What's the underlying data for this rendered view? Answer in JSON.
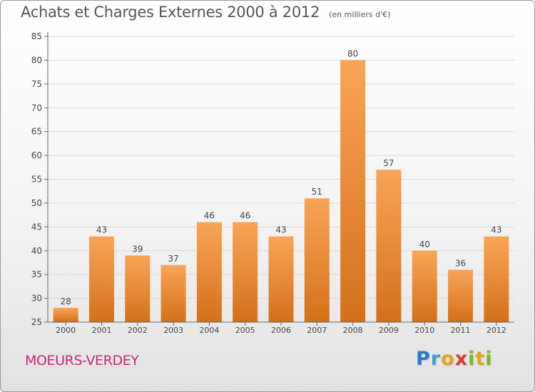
{
  "title": "Achats et Charges Externes 2000 à 2012",
  "unit": "(en milliers d'€)",
  "location": "MOEURS-VERDEY",
  "brand": {
    "letters": [
      "P",
      "r",
      "o",
      "x",
      "i",
      "t",
      "i"
    ],
    "colors": [
      "#2b79c8",
      "#3ba3d8",
      "#e8a21a",
      "#d93a2b",
      "#7ab828",
      "#e8a21a",
      "#7ab828"
    ]
  },
  "colors": {
    "bar_top": "#f9a557",
    "bar_bottom": "#d4701a",
    "axis": "#666666",
    "grid": "#d8d8d8"
  },
  "chart_data": {
    "type": "bar",
    "categories": [
      "2000",
      "2001",
      "2002",
      "2003",
      "2004",
      "2005",
      "2006",
      "2007",
      "2008",
      "2009",
      "2010",
      "2011",
      "2012"
    ],
    "values": [
      28,
      43,
      39,
      37,
      46,
      46,
      43,
      51,
      80,
      57,
      40,
      36,
      43
    ],
    "ylim": [
      25,
      85
    ],
    "yticks": [
      25,
      30,
      35,
      40,
      45,
      50,
      55,
      60,
      65,
      70,
      75,
      80,
      85
    ],
    "grid": true,
    "data_labels": true
  }
}
